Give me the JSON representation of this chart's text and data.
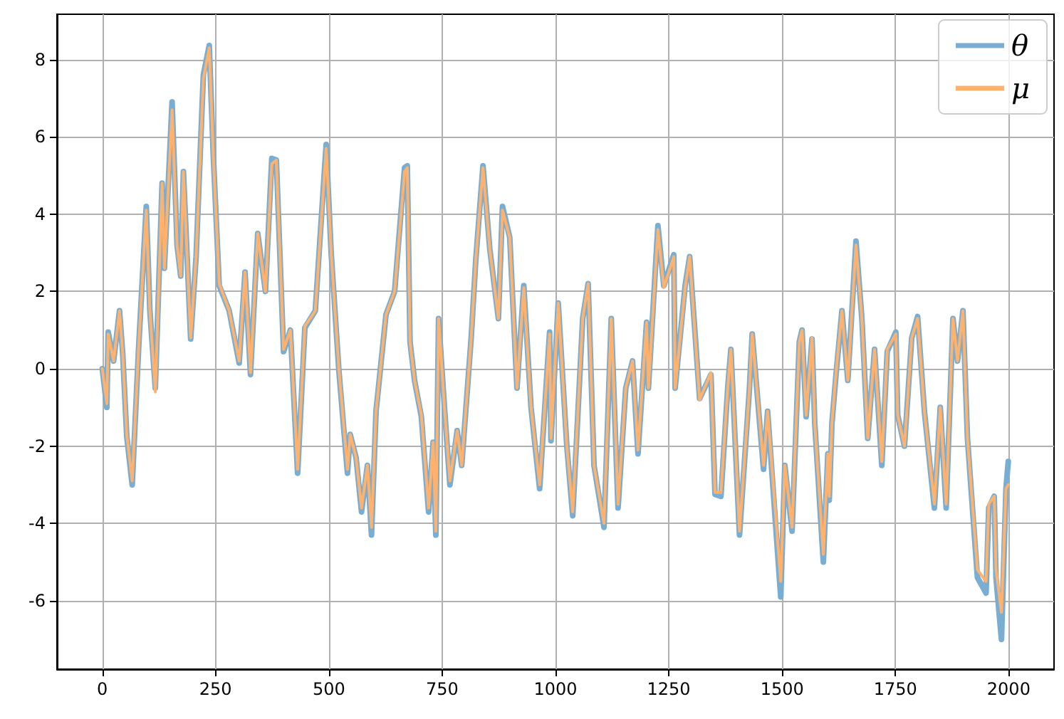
{
  "chart_data": {
    "type": "line",
    "x": [
      0,
      10,
      13,
      25,
      38,
      45,
      54,
      66,
      80,
      97,
      105,
      117,
      132,
      137,
      154,
      165,
      173,
      179,
      195,
      207,
      223,
      236,
      245,
      258,
      280,
      302,
      315,
      327,
      343,
      360,
      374,
      384,
      400,
      415,
      431,
      447,
      470,
      494,
      505,
      522,
      541,
      547,
      560,
      572,
      585,
      594,
      604,
      626,
      645,
      667,
      673,
      679,
      689,
      704,
      720,
      730,
      736,
      742,
      755,
      767,
      783,
      793,
      814,
      824,
      840,
      855,
      874,
      883,
      899,
      915,
      930,
      946,
      965,
      987,
      990,
      1006,
      1025,
      1038,
      1060,
      1072,
      1085,
      1107,
      1123,
      1138,
      1155,
      1170,
      1182,
      1201,
      1205,
      1226,
      1239,
      1261,
      1264,
      1286,
      1296,
      1318,
      1343,
      1352,
      1365,
      1380,
      1387,
      1406,
      1428,
      1434,
      1459,
      1468,
      1497,
      1506,
      1522,
      1538,
      1544,
      1553,
      1566,
      1572,
      1591,
      1601,
      1604,
      1610,
      1619,
      1632,
      1645,
      1663,
      1676,
      1689,
      1704,
      1720,
      1732,
      1751,
      1755,
      1770,
      1786,
      1799,
      1814,
      1836,
      1849,
      1862,
      1877,
      1887,
      1899,
      1909,
      1931,
      1950,
      1956,
      1968,
      1972,
      1984,
      1994,
      1999
    ],
    "series": [
      {
        "name": "θ",
        "color": "#79add2",
        "values": [
          0,
          -1.0,
          0.95,
          0.2,
          1.5,
          0.4,
          -1.75,
          -3.0,
          0.5,
          4.2,
          1.5,
          -0.5,
          4.8,
          2.6,
          6.9,
          3.2,
          2.4,
          5.1,
          0.77,
          2.9,
          7.6,
          8.36,
          5.5,
          2.15,
          1.5,
          0.15,
          2.5,
          -0.15,
          3.5,
          2.0,
          5.44,
          5.4,
          0.44,
          1.0,
          -2.7,
          1.06,
          1.5,
          5.8,
          3.0,
          -0.04,
          -2.7,
          -1.7,
          -2.3,
          -3.7,
          -2.5,
          -4.3,
          -1.1,
          1.4,
          2.0,
          5.2,
          5.25,
          0.7,
          -0.3,
          -1.24,
          -3.7,
          -1.9,
          -4.3,
          1.3,
          -1.0,
          -3.0,
          -1.6,
          -2.5,
          0.8,
          2.8,
          5.25,
          3.1,
          1.3,
          4.2,
          3.4,
          -0.5,
          2.15,
          -1.0,
          -3.1,
          0.95,
          -1.86,
          1.7,
          -2.0,
          -3.8,
          1.3,
          2.2,
          -2.5,
          -4.1,
          1.3,
          -3.6,
          -0.5,
          0.2,
          -2.2,
          1.2,
          -0.5,
          3.7,
          2.15,
          2.95,
          -0.5,
          2.15,
          2.9,
          -0.77,
          -0.15,
          -3.25,
          -3.3,
          -0.5,
          0.5,
          -4.3,
          -0.5,
          0.9,
          -2.6,
          -1.1,
          -5.9,
          -2.5,
          -4.2,
          0.7,
          1.0,
          -1.24,
          0.77,
          -1.4,
          -5.0,
          -2.2,
          -3.4,
          -1.4,
          -0.15,
          1.5,
          -0.3,
          3.3,
          1.3,
          -1.8,
          0.5,
          -2.5,
          0.45,
          0.95,
          -1.2,
          -2.0,
          0.8,
          1.35,
          -1.1,
          -3.6,
          -1.0,
          -3.6,
          1.3,
          0.2,
          1.5,
          -1.8,
          -5.4,
          -5.8,
          -3.6,
          -3.3,
          -5.4,
          -7.0,
          -3.1,
          -2.4
        ]
      },
      {
        "name": "μ",
        "color": "#ffb26e",
        "values": [
          0,
          -0.9,
          0.9,
          0.2,
          1.5,
          0.4,
          -1.7,
          -2.9,
          0.5,
          4.1,
          1.5,
          -0.6,
          4.8,
          2.6,
          6.7,
          3.2,
          2.4,
          5.1,
          0.8,
          2.9,
          7.5,
          8.3,
          5.5,
          2.2,
          1.5,
          0.2,
          2.5,
          -0.1,
          3.5,
          2.0,
          5.3,
          5.4,
          0.5,
          1.0,
          -2.6,
          1.1,
          1.5,
          5.7,
          3.0,
          0.0,
          -2.6,
          -1.7,
          -2.3,
          -3.6,
          -2.5,
          -4.1,
          -1.1,
          1.4,
          2.0,
          5.1,
          5.2,
          0.7,
          -0.3,
          -1.2,
          -3.6,
          -1.9,
          -4.2,
          1.3,
          -1.0,
          -2.9,
          -1.6,
          -2.5,
          0.8,
          2.8,
          5.2,
          3.1,
          1.3,
          4.1,
          3.4,
          -0.5,
          2.1,
          -1.0,
          -3.0,
          0.9,
          -1.8,
          1.7,
          -2.0,
          -3.7,
          1.3,
          2.2,
          -2.5,
          -4.0,
          1.3,
          -3.5,
          -0.5,
          0.2,
          -2.1,
          1.2,
          -0.5,
          3.6,
          2.1,
          2.9,
          -0.5,
          2.1,
          2.9,
          -0.8,
          -0.1,
          -3.2,
          -3.2,
          -0.5,
          0.5,
          -4.2,
          -0.5,
          0.9,
          -2.5,
          -1.1,
          -5.5,
          -2.5,
          -4.1,
          0.7,
          1.0,
          -1.2,
          0.8,
          -1.4,
          -4.8,
          -2.2,
          -3.3,
          -1.4,
          -0.1,
          1.5,
          -0.3,
          3.2,
          1.3,
          -1.8,
          0.5,
          -2.4,
          0.5,
          0.9,
          -1.2,
          -2.0,
          0.8,
          1.3,
          -1.1,
          -3.5,
          -1.0,
          -3.5,
          1.3,
          0.2,
          1.5,
          -1.8,
          -5.2,
          -5.5,
          -3.5,
          -3.3,
          -5.2,
          -6.3,
          -3.1,
          -3.0
        ]
      }
    ],
    "xlim": [
      -100,
      2100
    ],
    "xticks": [
      0,
      250,
      500,
      750,
      1000,
      1250,
      1500,
      1750,
      2000
    ],
    "ylim": [
      -7.77,
      9.17
    ],
    "yticks": [
      -6,
      -4,
      -2,
      0,
      2,
      4,
      6,
      8
    ],
    "grid": true,
    "legend": "top right",
    "marker": "none",
    "line_style": "solid"
  }
}
